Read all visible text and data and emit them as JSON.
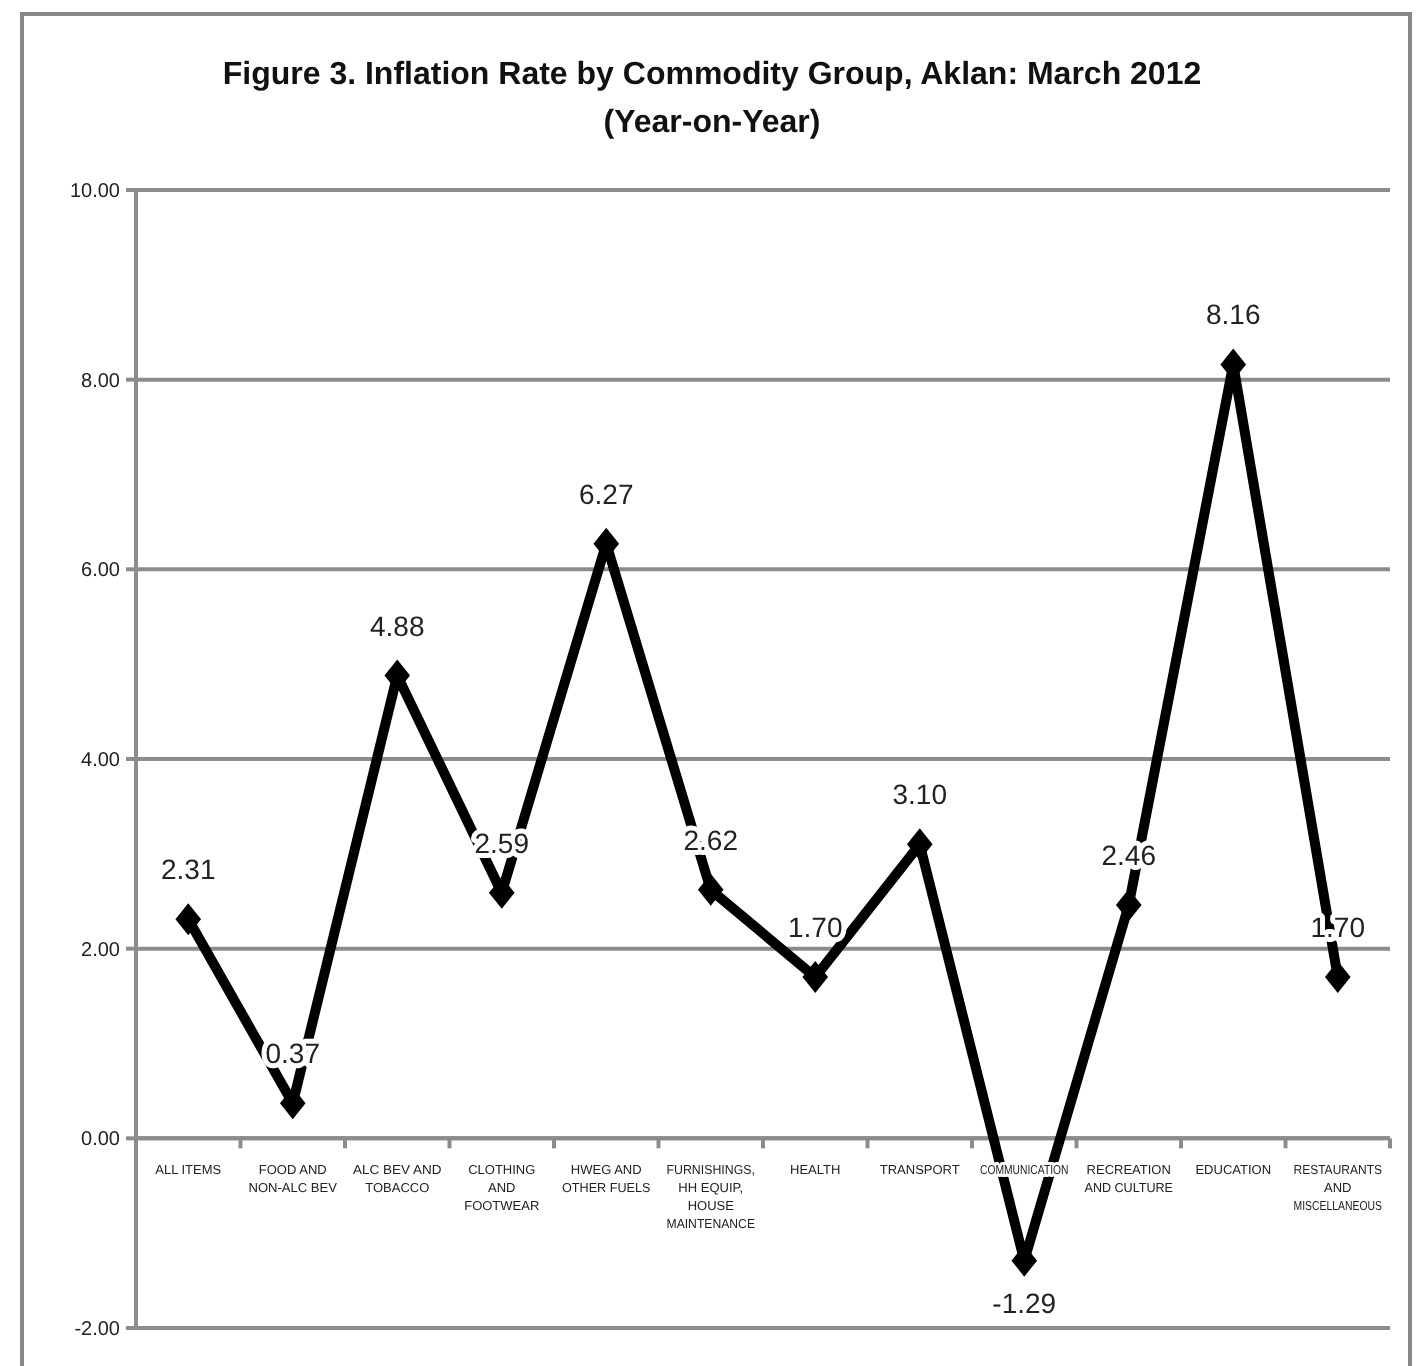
{
  "chart_data": {
    "type": "line",
    "title": "Figure 3. Inflation Rate by Commodity Group, Aklan: March 2012",
    "subtitle": "(Year-on-Year)",
    "categories": [
      "ALL ITEMS",
      "FOOD AND NON-ALC BEV",
      "ALC BEV AND TOBACCO",
      "CLOTHING AND FOOTWEAR",
      "HWEG AND OTHER FUELS",
      "FURNISHINGS, HH EQUIP, HOUSE MAINTENANCE",
      "HEALTH",
      "TRANSPORT",
      "COMMUNICATION",
      "RECREATION AND CULTURE",
      "EDUCATION",
      "RESTAURANTS AND MISCELLANEOUS"
    ],
    "series": [
      {
        "color": "#000000",
        "values": [
          2.31,
          0.37,
          4.88,
          2.59,
          6.27,
          2.62,
          1.7,
          3.1,
          -1.29,
          2.46,
          8.16,
          1.7
        ],
        "value_labels": [
          "2.31",
          "0.37",
          "4.88",
          "2.59",
          "6.27",
          "2.62",
          "1.70",
          "3.10",
          "-1.29",
          "2.46",
          "8.16",
          "1.70"
        ]
      }
    ],
    "ylim": [
      -2,
      10
    ],
    "yticks": [
      {
        "value": -2,
        "label": "-2.00"
      },
      {
        "value": 0,
        "label": "0.00"
      },
      {
        "value": 2,
        "label": "2.00"
      },
      {
        "value": 4,
        "label": "4.00"
      },
      {
        "value": 6,
        "label": "6.00"
      },
      {
        "value": 8,
        "label": "8.00"
      },
      {
        "value": 10,
        "label": "10.00"
      }
    ],
    "grid": "y",
    "marker": "diamond",
    "line_style": "solid"
  }
}
